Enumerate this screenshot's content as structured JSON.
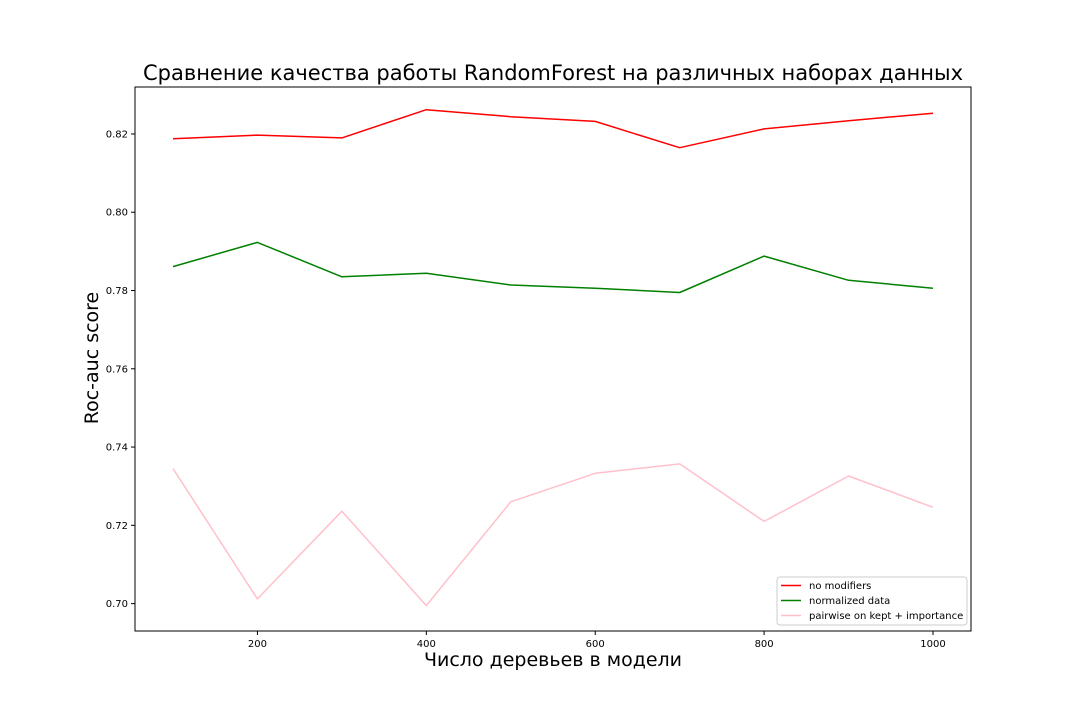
{
  "chart_data": {
    "type": "line",
    "title": "Сравнение качества работы RandomForest на различных наборах данных",
    "xlabel": "Число деревьев в модели",
    "ylabel": "Roc-auc score",
    "x": [
      100,
      200,
      300,
      400,
      500,
      600,
      700,
      800,
      900,
      1000
    ],
    "xlim": [
      55,
      1045
    ],
    "ylim": [
      0.693,
      0.832
    ],
    "xticks": [
      200,
      400,
      600,
      800,
      1000
    ],
    "yticks": [
      0.7,
      0.72,
      0.74,
      0.76,
      0.78,
      0.8,
      0.82
    ],
    "xtick_labels": [
      "200",
      "400",
      "600",
      "800",
      "1000"
    ],
    "ytick_labels": [
      "0.70",
      "0.72",
      "0.74",
      "0.76",
      "0.78",
      "0.80",
      "0.82"
    ],
    "grid": false,
    "legend_position": "lower-right",
    "series": [
      {
        "name": "no modifiers",
        "color": "#ff0000",
        "values": [
          0.8188,
          0.8197,
          0.819,
          0.8262,
          0.8244,
          0.8232,
          0.8165,
          0.8213,
          0.8234,
          0.8253
        ]
      },
      {
        "name": "normalized data",
        "color": "#008000",
        "values": [
          0.7861,
          0.7923,
          0.7835,
          0.7844,
          0.7814,
          0.7806,
          0.7795,
          0.7888,
          0.7826,
          0.7806
        ]
      },
      {
        "name": "pairwise on kept + importance",
        "color": "#ffc0cb",
        "values": [
          0.7345,
          0.7012,
          0.7236,
          0.6995,
          0.726,
          0.7333,
          0.7357,
          0.721,
          0.7326,
          0.7246
        ]
      }
    ]
  }
}
